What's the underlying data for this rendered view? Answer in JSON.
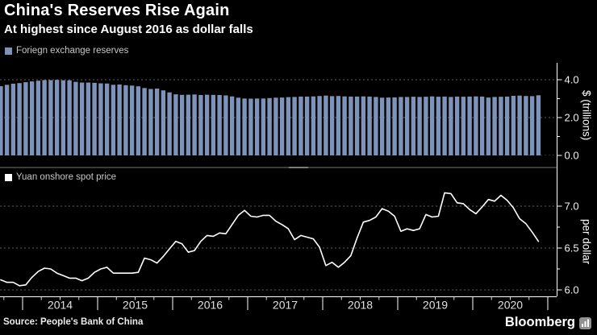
{
  "header": {
    "title": "China's Reserves Rise Again",
    "subtitle": "At highest since August 2016 as dollar falls"
  },
  "footer": {
    "source": "Source: People's Bank of China",
    "brand": "Bloomberg"
  },
  "colors": {
    "background": "#000000",
    "bar": "#7d93ba",
    "line": "#ffffff",
    "grid": "#616161",
    "axis": "#ffffff",
    "tick_label": "#f2f2f2",
    "year_label": "#e0e0e0",
    "legend_text": "#c7c7c7"
  },
  "x_axis": {
    "year_labels": [
      "2014",
      "2015",
      "2016",
      "2017",
      "2018",
      "2019",
      "2020"
    ]
  },
  "chart_data": [
    {
      "type": "bar",
      "panel": "top",
      "legend": "Foriegn exchange reserves",
      "legend_swatch_color": "#7d93ba",
      "ylabel": "$ (trillions)",
      "yticks": [
        0.0,
        2.0,
        4.0
      ],
      "yticks_minor": [
        1.0,
        3.0
      ],
      "ylim": [
        0,
        4.9
      ],
      "grid": true,
      "frequency": "monthly",
      "x_start": {
        "year": 2013,
        "month": 9
      },
      "x_end": {
        "year": 2020,
        "month": 11
      },
      "values": [
        3.66,
        3.73,
        3.79,
        3.82,
        3.87,
        3.91,
        3.95,
        3.98,
        3.98,
        3.99,
        3.97,
        3.97,
        3.89,
        3.85,
        3.85,
        3.84,
        3.81,
        3.8,
        3.73,
        3.75,
        3.71,
        3.69,
        3.65,
        3.56,
        3.51,
        3.53,
        3.44,
        3.33,
        3.23,
        3.2,
        3.21,
        3.22,
        3.19,
        3.21,
        3.2,
        3.19,
        3.17,
        3.12,
        3.05,
        3.01,
        3.0,
        3.01,
        3.01,
        3.03,
        3.05,
        3.06,
        3.08,
        3.09,
        3.11,
        3.11,
        3.12,
        3.14,
        3.16,
        3.13,
        3.14,
        3.12,
        3.11,
        3.11,
        3.12,
        3.11,
        3.09,
        3.05,
        3.06,
        3.07,
        3.09,
        3.09,
        3.1,
        3.09,
        3.1,
        3.12,
        3.1,
        3.11,
        3.09,
        3.11,
        3.1,
        3.11,
        3.12,
        3.11,
        3.06,
        3.09,
        3.1,
        3.11,
        3.15,
        3.16,
        3.14,
        3.13,
        3.18
      ]
    },
    {
      "type": "line",
      "panel": "bottom",
      "legend": "Yuan onshore spot price",
      "legend_swatch_color": "#ffffff",
      "ylabel": "per dollar",
      "yticks": [
        6.0,
        6.5,
        7.0
      ],
      "yticks_minor": [
        6.25,
        6.75
      ],
      "ylim": [
        5.97,
        7.2
      ],
      "grid": true,
      "frequency": "monthly",
      "x_start": {
        "year": 2013,
        "month": 9
      },
      "x_end": {
        "year": 2020,
        "month": 11
      },
      "values": [
        6.12,
        6.09,
        6.09,
        6.05,
        6.06,
        6.15,
        6.22,
        6.26,
        6.25,
        6.2,
        6.17,
        6.14,
        6.14,
        6.11,
        6.14,
        6.21,
        6.25,
        6.27,
        6.2,
        6.2,
        6.2,
        6.2,
        6.21,
        6.38,
        6.36,
        6.32,
        6.4,
        6.49,
        6.58,
        6.55,
        6.45,
        6.47,
        6.58,
        6.65,
        6.64,
        6.68,
        6.67,
        6.78,
        6.89,
        6.95,
        6.88,
        6.87,
        6.89,
        6.89,
        6.82,
        6.78,
        6.73,
        6.6,
        6.65,
        6.63,
        6.61,
        6.51,
        6.29,
        6.33,
        6.27,
        6.33,
        6.41,
        6.62,
        6.81,
        6.83,
        6.87,
        6.97,
        6.94,
        6.88,
        6.7,
        6.73,
        6.71,
        6.73,
        6.9,
        6.87,
        6.88,
        7.16,
        7.15,
        7.04,
        7.03,
        6.96,
        6.91,
        6.99,
        7.08,
        7.06,
        7.13,
        7.07,
        6.98,
        6.85,
        6.79,
        6.69,
        6.58
      ]
    }
  ]
}
